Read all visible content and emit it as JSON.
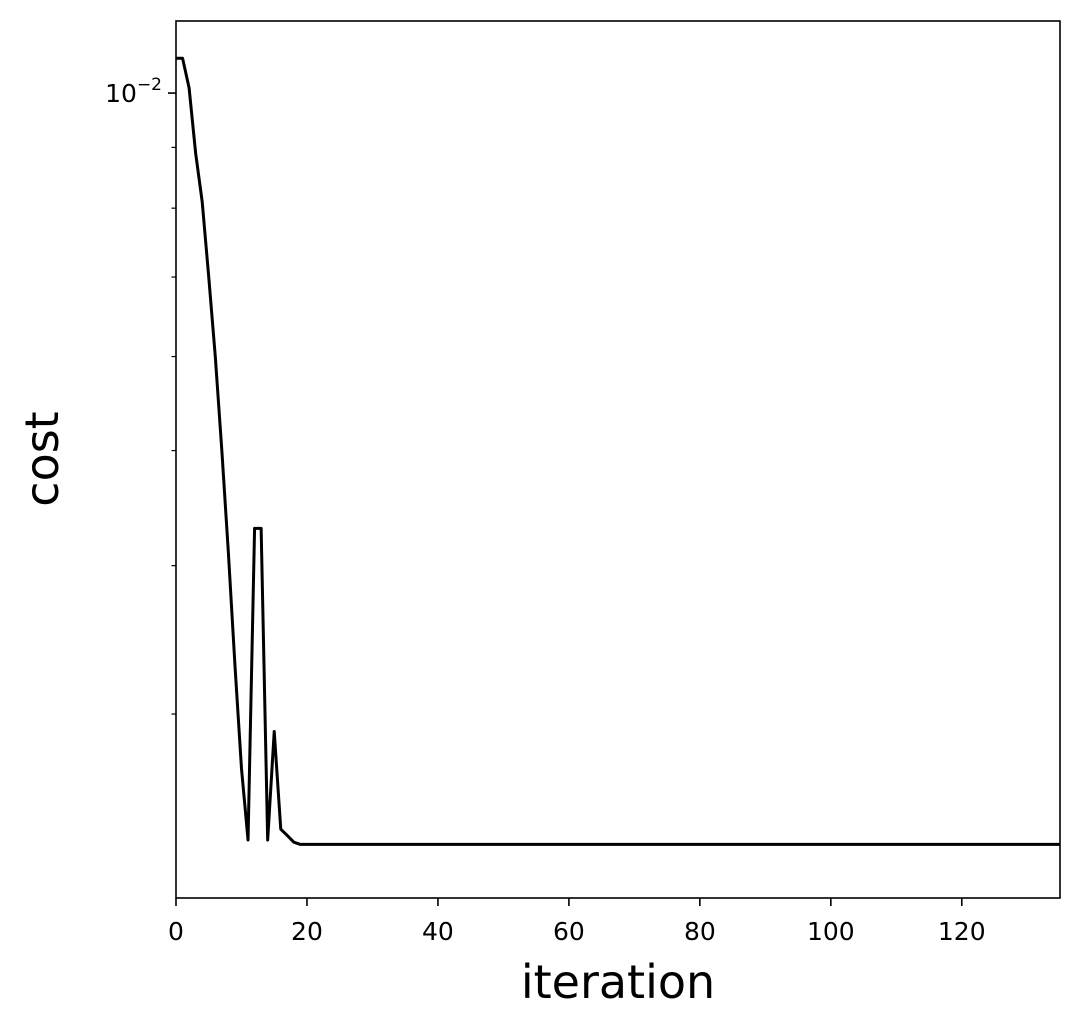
{
  "chart_data": {
    "type": "line",
    "title": "",
    "xlabel": "iteration",
    "ylabel": "cost",
    "xlim": [
      0,
      135
    ],
    "ylim": [
      0.0021,
      0.0115
    ],
    "xscale": "linear",
    "yscale": "log",
    "x_ticks": [
      0,
      20,
      40,
      60,
      80,
      100,
      120
    ],
    "y_major_ticks": [
      {
        "value": 0.01,
        "base": "10",
        "exponent": "−2"
      }
    ],
    "y_minor_ticks": [
      0.003,
      0.004,
      0.005,
      0.006,
      0.007,
      0.008,
      0.009
    ],
    "grid": false,
    "legend": "none",
    "line_color": "#000000",
    "series": [
      {
        "x": [
          0,
          1,
          2,
          3,
          4,
          5,
          6,
          7,
          8,
          9,
          10,
          11,
          12,
          13,
          14,
          15,
          16,
          17,
          18,
          19,
          20,
          135
        ],
        "y": [
          0.0107,
          0.0107,
          0.0101,
          0.0089,
          0.0081,
          0.007,
          0.006,
          0.005,
          0.0041,
          0.0033,
          0.0027,
          0.00235,
          0.0043,
          0.0043,
          0.00235,
          0.0029,
          0.0024,
          0.00237,
          0.00234,
          0.00233,
          0.00233,
          0.00233
        ]
      }
    ]
  }
}
